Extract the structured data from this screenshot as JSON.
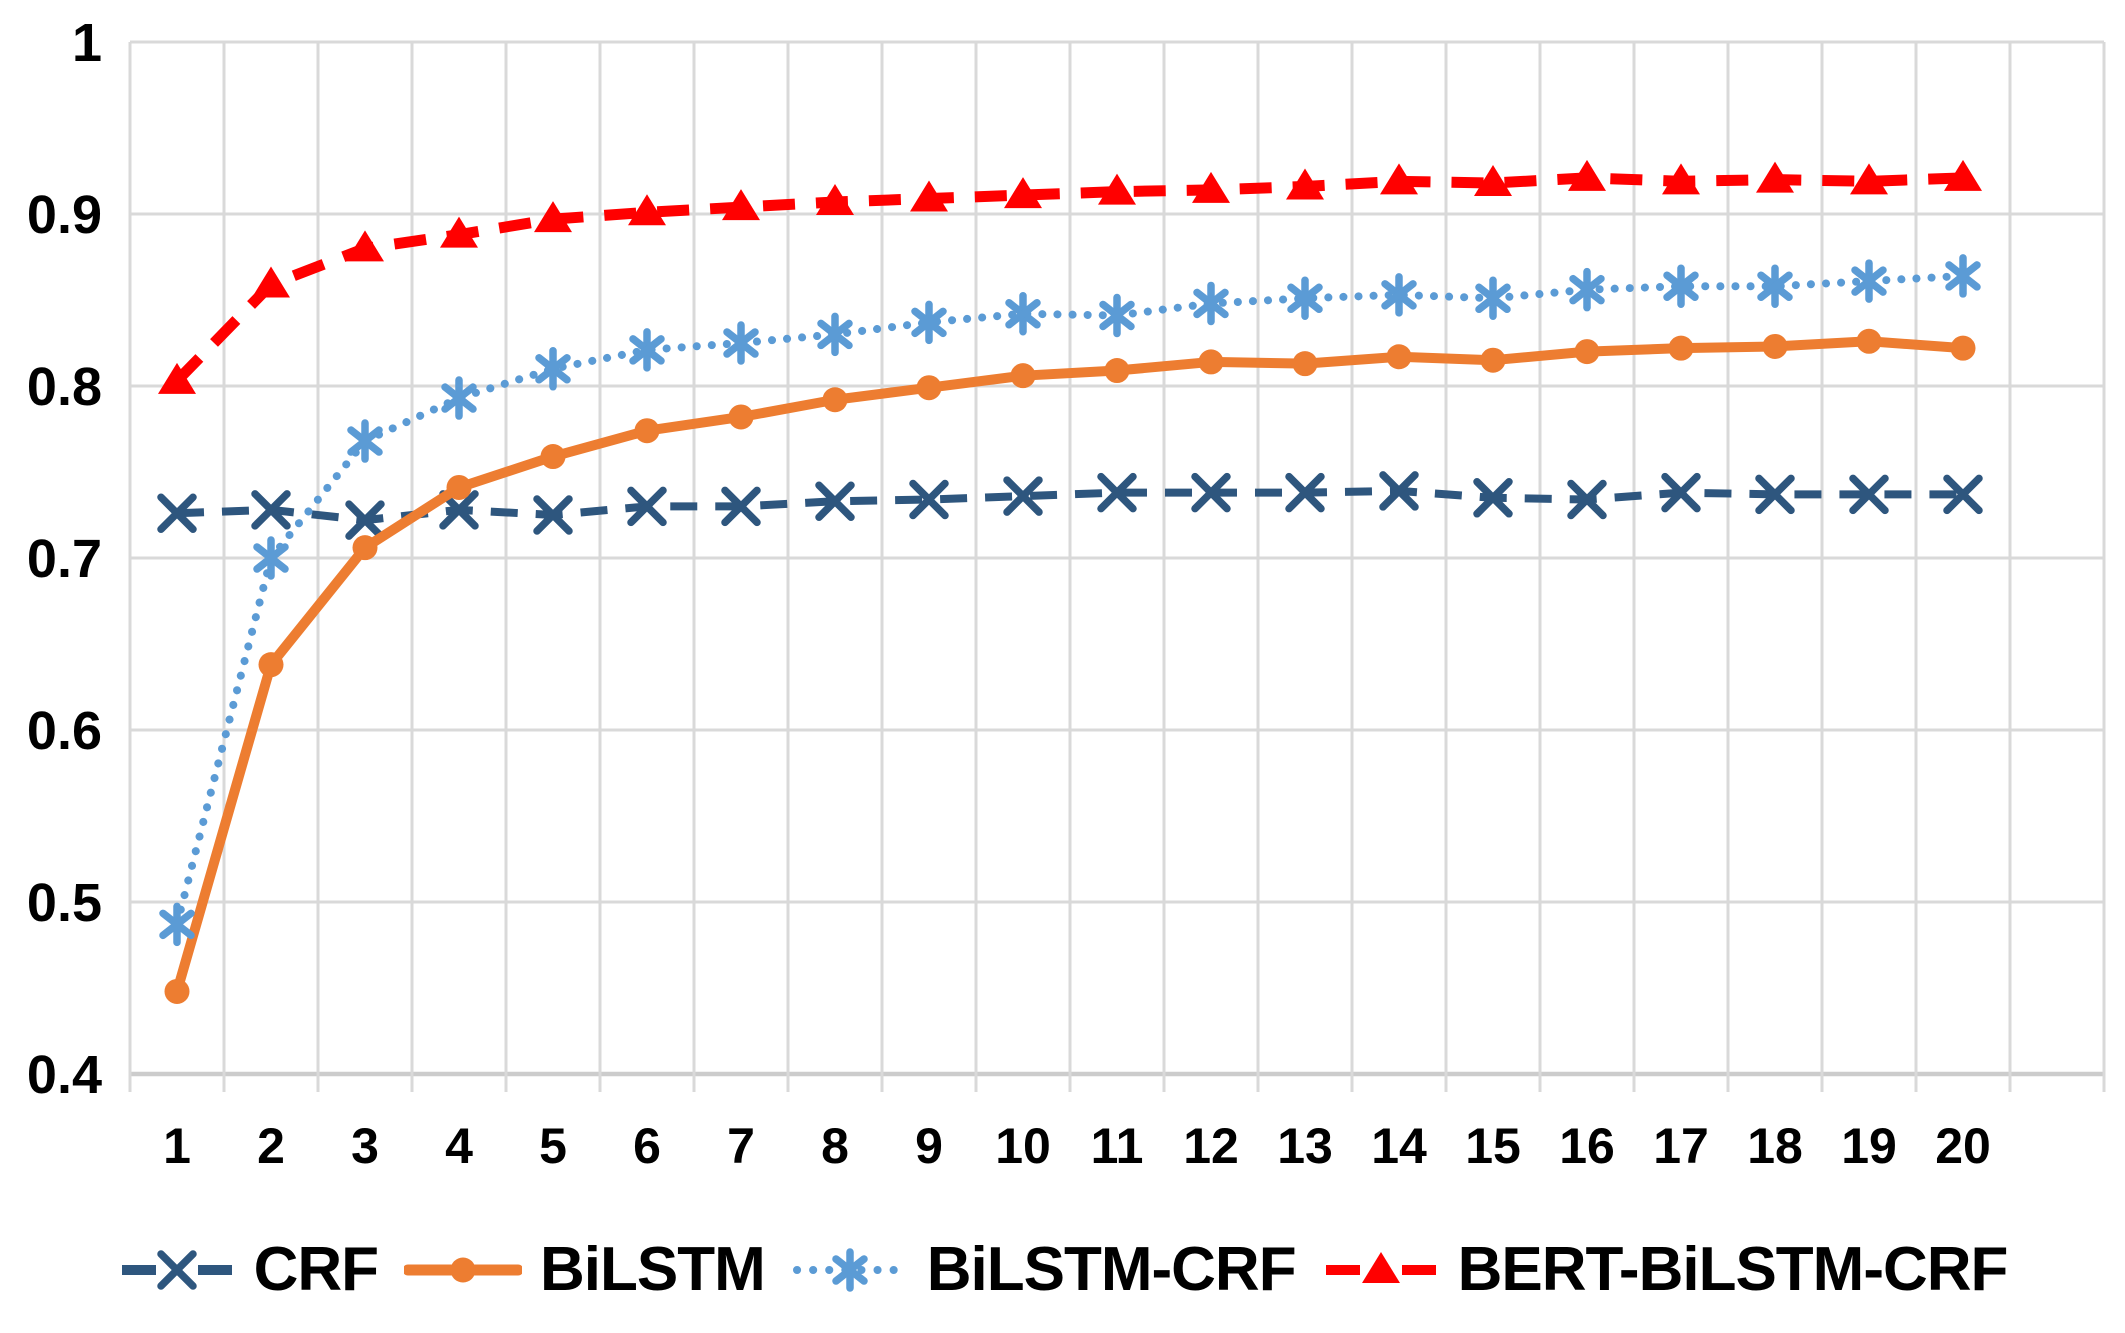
{
  "chart_data": {
    "type": "line",
    "title": "",
    "xlabel": "",
    "ylabel": "",
    "x_categories": [
      "1",
      "2",
      "3",
      "4",
      "5",
      "6",
      "7",
      "8",
      "9",
      "10",
      "11",
      "12",
      "13",
      "14",
      "15",
      "16",
      "17",
      "18",
      "19",
      "20"
    ],
    "y_tick_labels": [
      "1",
      "0.9",
      "0.8",
      "0.7",
      "0.6",
      "0.5",
      "0.4"
    ],
    "y_tick_values": [
      1.0,
      0.9,
      0.8,
      0.7,
      0.6,
      0.5,
      0.4
    ],
    "ylim": [
      0.4,
      1.0
    ],
    "grid": "major horizontal and vertical, light gray",
    "legend_position": "bottom",
    "series": [
      {
        "name": "CRF",
        "color": "#2E567E",
        "line_style": "dash",
        "marker": "x",
        "values": [
          0.726,
          0.728,
          0.722,
          0.728,
          0.725,
          0.73,
          0.73,
          0.733,
          0.734,
          0.736,
          0.738,
          0.738,
          0.738,
          0.739,
          0.735,
          0.734,
          0.738,
          0.737,
          0.737,
          0.737
        ]
      },
      {
        "name": "BiLSTM",
        "color": "#ED7D31",
        "line_style": "solid",
        "marker": "circle",
        "values": [
          0.448,
          0.638,
          0.706,
          0.741,
          0.759,
          0.774,
          0.782,
          0.792,
          0.799,
          0.806,
          0.809,
          0.814,
          0.813,
          0.817,
          0.815,
          0.82,
          0.822,
          0.823,
          0.826,
          0.822
        ]
      },
      {
        "name": "BiLSTM-CRF",
        "color": "#5B9BD5",
        "line_style": "dot",
        "marker": "asterisk",
        "values": [
          0.487,
          0.7,
          0.768,
          0.793,
          0.81,
          0.821,
          0.825,
          0.83,
          0.837,
          0.842,
          0.841,
          0.848,
          0.851,
          0.853,
          0.851,
          0.856,
          0.858,
          0.858,
          0.861,
          0.864
        ]
      },
      {
        "name": "BERT-BiLSTM-CRF",
        "color": "#FF0000",
        "line_style": "dash",
        "marker": "triangle",
        "values": [
          0.803,
          0.859,
          0.88,
          0.888,
          0.897,
          0.901,
          0.904,
          0.907,
          0.909,
          0.911,
          0.913,
          0.914,
          0.916,
          0.919,
          0.918,
          0.921,
          0.919,
          0.92,
          0.919,
          0.921
        ]
      }
    ]
  },
  "colors": {
    "background": "#FFFFFF",
    "gridline": "#D9D9D9",
    "axis_line": "#CCCCCC",
    "tick_text": "#000000"
  }
}
